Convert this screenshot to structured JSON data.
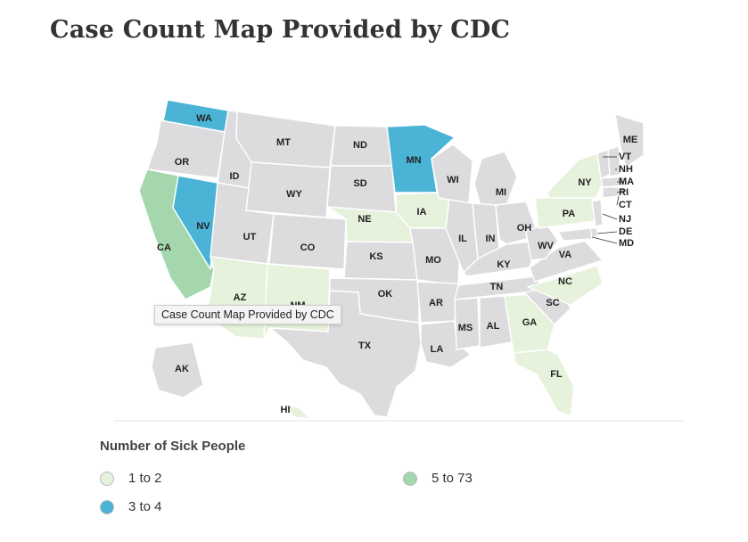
{
  "page": {
    "title": "Case Count Map Provided by CDC"
  },
  "map": {
    "tooltip": "Case Count Map Provided by CDC",
    "categories": {
      "none": {
        "color": "#dcdcdf"
      },
      "light": {
        "label": "1 to 2",
        "color": "#e6f2dc"
      },
      "blue": {
        "label": "3 to 4",
        "color": "#4ab3d6"
      },
      "green": {
        "label": "5 to 73",
        "color": "#a4d7ad"
      }
    },
    "states": {
      "WA": "blue",
      "OR": "none",
      "CA": "green",
      "NV": "blue",
      "ID": "none",
      "MT": "none",
      "WY": "none",
      "UT": "none",
      "AZ": "light",
      "CO": "none",
      "NM": "light",
      "ND": "none",
      "SD": "none",
      "NE": "light",
      "KS": "none",
      "OK": "none",
      "TX": "none",
      "MN": "blue",
      "IA": "light",
      "MO": "none",
      "AR": "none",
      "LA": "none",
      "WI": "none",
      "IL": "none",
      "MI": "none",
      "IN": "none",
      "OH": "none",
      "KY": "none",
      "TN": "none",
      "MS": "none",
      "AL": "none",
      "GA": "light",
      "FL": "light",
      "SC": "none",
      "NC": "light",
      "VA": "none",
      "WV": "none",
      "PA": "light",
      "NY": "light",
      "ME": "none",
      "VT": "none",
      "NH": "none",
      "MA": "none",
      "RI": "none",
      "CT": "none",
      "NJ": "none",
      "DE": "none",
      "MD": "none",
      "AK": "none",
      "HI": "light"
    }
  },
  "legend": {
    "title": "Number of Sick People",
    "items": [
      {
        "label": "1 to 2",
        "color": "#e6f2dc"
      },
      {
        "label": "3 to 4",
        "color": "#4ab3d6"
      },
      {
        "label": "5 to 73",
        "color": "#a4d7ad"
      }
    ]
  }
}
